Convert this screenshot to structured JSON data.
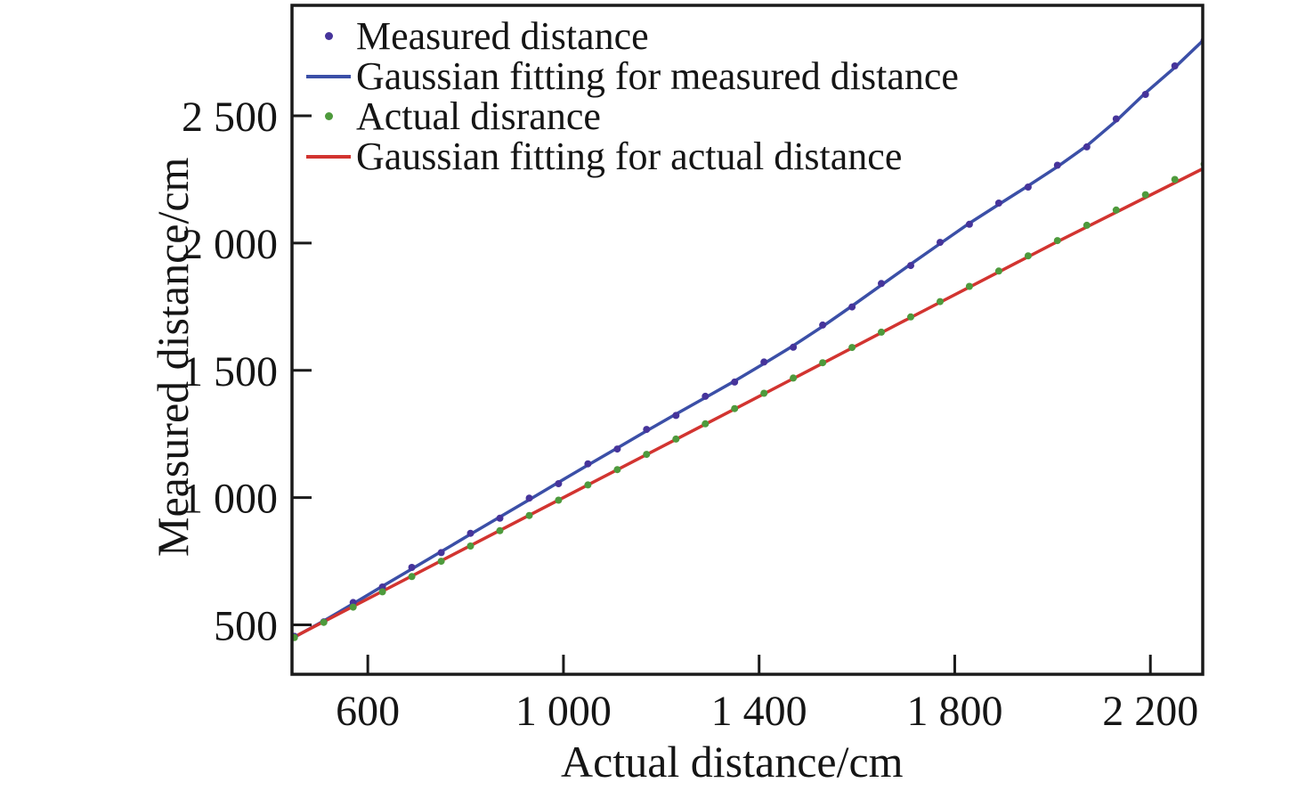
{
  "figure": {
    "background": "#ffffff",
    "frame_color": "#1a1a1a",
    "tick_label_color": "#151515"
  },
  "chart_data": {
    "type": "line",
    "title": "",
    "xlabel": "Actual distance/cm",
    "ylabel": "Measured distance/cm",
    "grid": false,
    "legend_position": "top-left",
    "x_axis": {
      "range": [
        445,
        2307
      ],
      "ticks": [
        600,
        1000,
        1400,
        1800,
        2200
      ],
      "tick_labels": [
        "600",
        "1 000",
        "1 400",
        "1 800",
        "2 200"
      ]
    },
    "y_axis": {
      "range": [
        306,
        2934
      ],
      "ticks": [
        500,
        1000,
        1500,
        2000,
        2500
      ],
      "tick_labels": [
        "500",
        "1 000",
        "1 500",
        "2 000",
        "2 500"
      ]
    },
    "series": [
      {
        "id": "measured-points",
        "name": "Measured distance",
        "type": "scatter",
        "marker": "dot",
        "color": "#46349b",
        "marker_radius": 4,
        "x": [
          450,
          510,
          570,
          630,
          690,
          750,
          810,
          870,
          930,
          990,
          1050,
          1110,
          1170,
          1230,
          1290,
          1350,
          1410,
          1470,
          1530,
          1590,
          1650,
          1710,
          1770,
          1830,
          1890,
          1950,
          2010,
          2070,
          2130,
          2190,
          2250,
          2310
        ],
        "y": [
          455,
          512,
          588,
          649,
          726,
          784,
          860,
          919,
          998,
          1055,
          1133,
          1191,
          1268,
          1323,
          1398,
          1454,
          1533,
          1591,
          1678,
          1749,
          1841,
          1912,
          2003,
          2074,
          2157,
          2220,
          2306,
          2378,
          2488,
          2584,
          2696,
          2796
        ]
      },
      {
        "id": "measured-fit",
        "name": "Gaussian fitting for measured distance",
        "type": "line",
        "color": "#3b4fa7",
        "line_width": 3.5,
        "x": [
          445,
          450,
          510,
          570,
          630,
          690,
          750,
          810,
          870,
          930,
          990,
          1050,
          1110,
          1170,
          1230,
          1290,
          1350,
          1410,
          1470,
          1530,
          1590,
          1650,
          1710,
          1770,
          1830,
          1890,
          1950,
          2010,
          2070,
          2130,
          2190,
          2250,
          2310
        ],
        "y": [
          448,
          452,
          516,
          583,
          652,
          720,
          788,
          856,
          924,
          992,
          1060,
          1128,
          1195,
          1262,
          1328,
          1393,
          1458,
          1527,
          1597,
          1673,
          1753,
          1835,
          1917,
          1998,
          2078,
          2152,
          2225,
          2300,
          2382,
          2480,
          2590,
          2690,
          2800
        ]
      },
      {
        "id": "actual-points",
        "name": "Actual disrance",
        "type": "scatter",
        "marker": "dot",
        "color": "#4e9a3c",
        "marker_radius": 4,
        "x": [
          450,
          510,
          570,
          630,
          690,
          750,
          810,
          870,
          930,
          990,
          1050,
          1110,
          1170,
          1230,
          1290,
          1350,
          1410,
          1470,
          1530,
          1590,
          1650,
          1710,
          1770,
          1830,
          1890,
          1950,
          2010,
          2070,
          2130,
          2190,
          2250,
          2310
        ],
        "y": [
          450,
          510,
          570,
          630,
          690,
          750,
          810,
          870,
          930,
          990,
          1050,
          1110,
          1170,
          1230,
          1290,
          1350,
          1410,
          1470,
          1530,
          1590,
          1650,
          1710,
          1770,
          1830,
          1890,
          1950,
          2010,
          2070,
          2130,
          2190,
          2250,
          2310
        ]
      },
      {
        "id": "actual-fit",
        "name": "Gaussian fitting for actual distance",
        "type": "line",
        "color": "#d23430",
        "line_width": 3.5,
        "x": [
          445,
          760,
          1070,
          1380,
          1690,
          2000,
          2307
        ],
        "y": [
          448,
          762,
          1070,
          1378,
          1688,
          1996,
          2292
        ]
      }
    ],
    "legend": [
      {
        "marker": "dot",
        "color": "#46349b"
      },
      {
        "marker": "line",
        "color": "#3b4fa7"
      },
      {
        "marker": "dot",
        "color": "#4e9a3c"
      },
      {
        "marker": "line",
        "color": "#d23430"
      }
    ]
  }
}
